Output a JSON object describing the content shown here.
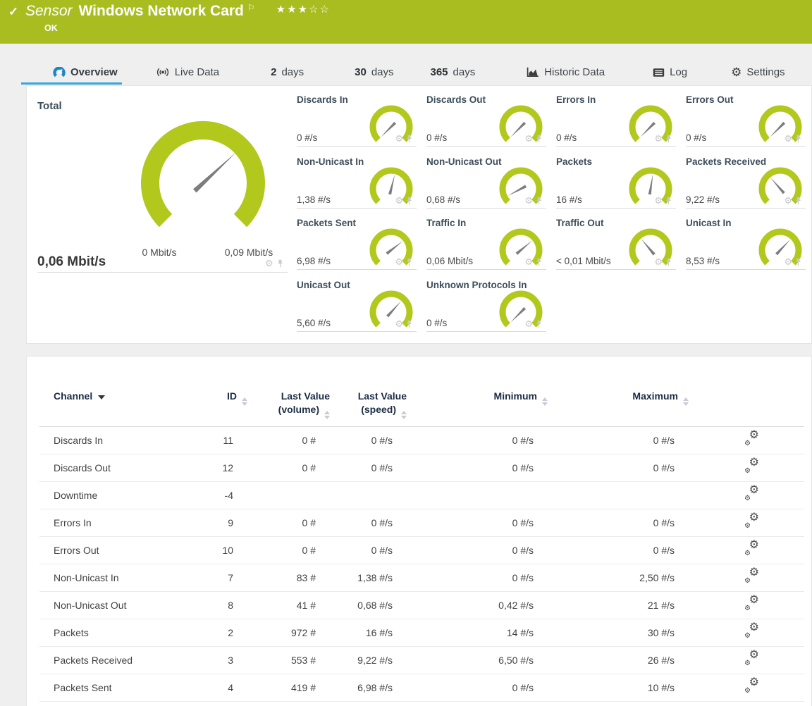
{
  "header": {
    "kind_label": "Sensor",
    "title": "Windows Network Card",
    "status_text": "OK",
    "rating_filled": 3,
    "rating_total": 5,
    "status_icon": "check-icon",
    "flag_icon": "flag-icon",
    "color": "#a9bd20"
  },
  "tabs": [
    {
      "label": "Overview",
      "icon": "gauge-icon",
      "active": true
    },
    {
      "label": "Live Data",
      "icon": "broadcast-icon"
    },
    {
      "prefix": "2",
      "label": "days"
    },
    {
      "prefix": "30",
      "label": "days"
    },
    {
      "prefix": "365",
      "label": "days"
    },
    {
      "label": "Historic Data",
      "icon": "chart-icon"
    },
    {
      "label": "Log",
      "icon": "log-icon"
    },
    {
      "label": "Settings",
      "icon": "gear-icon"
    }
  ],
  "gauge_colors": {
    "arc": "#b2c81c",
    "needle": "#7d7d7d"
  },
  "tile_icons": [
    "gear-icon",
    "pin-icon"
  ],
  "chart_data": [
    {
      "type": "gauge",
      "name": "Total",
      "value_label": "0,06 Mbit/s",
      "min_label": "0 Mbit/s",
      "max_label": "0,09 Mbit/s",
      "value": 0.06,
      "min": 0,
      "max": 0.09,
      "needle_deg": 43,
      "size": "large"
    },
    {
      "type": "gauge",
      "name": "Discards In",
      "value_label": "0 #/s",
      "value": 0,
      "needle_deg": 225
    },
    {
      "type": "gauge",
      "name": "Discards Out",
      "value_label": "0 #/s",
      "value": 0,
      "needle_deg": 225
    },
    {
      "type": "gauge",
      "name": "Errors In",
      "value_label": "0 #/s",
      "value": 0,
      "needle_deg": 225
    },
    {
      "type": "gauge",
      "name": "Errors Out",
      "value_label": "0 #/s",
      "value": 0,
      "needle_deg": 225
    },
    {
      "type": "gauge",
      "name": "Non-Unicast In",
      "value_label": "1,38 #/s",
      "value": 1.38,
      "needle_deg": 76
    },
    {
      "type": "gauge",
      "name": "Non-Unicast Out",
      "value_label": "0,68 #/s",
      "value": 0.68,
      "needle_deg": 208
    },
    {
      "type": "gauge",
      "name": "Packets",
      "value_label": "16 #/s",
      "value": 16,
      "needle_deg": 81
    },
    {
      "type": "gauge",
      "name": "Packets Received",
      "value_label": "9,22 #/s",
      "value": 9.22,
      "needle_deg": 131
    },
    {
      "type": "gauge",
      "name": "Packets Sent",
      "value_label": "6,98 #/s",
      "value": 6.98,
      "needle_deg": 38
    },
    {
      "type": "gauge",
      "name": "Traffic In",
      "value_label": "0,06 Mbit/s",
      "value": 0.06,
      "needle_deg": 40
    },
    {
      "type": "gauge",
      "name": "Traffic Out",
      "value_label": "< 0,01 Mbit/s",
      "value": 0.01,
      "needle_deg": 130
    },
    {
      "type": "gauge",
      "name": "Unicast In",
      "value_label": "8,53 #/s",
      "value": 8.53,
      "needle_deg": 47
    },
    {
      "type": "gauge",
      "name": "Unicast Out",
      "value_label": "5,60 #/s",
      "value": 5.6,
      "needle_deg": 48
    },
    {
      "type": "gauge",
      "name": "Unknown Protocols In",
      "value_label": "0 #/s",
      "value": 0,
      "needle_deg": 225
    }
  ],
  "table": {
    "columns": [
      {
        "label": "Channel",
        "sort": "active-desc"
      },
      {
        "label": "ID",
        "sort": "both"
      },
      {
        "label": "Last Value",
        "sub": "(volume)",
        "sort": "both"
      },
      {
        "label": "Last Value",
        "sub": "(speed)",
        "sort": "both"
      },
      {
        "label": "Minimum",
        "sort": "both"
      },
      {
        "label": "Maximum",
        "sort": "both"
      },
      {
        "label": "",
        "sort": "none"
      }
    ],
    "row_action_icon": "channel-settings-icon",
    "rows": [
      {
        "channel": "Discards In",
        "id": "11",
        "volume": "0 #",
        "speed": "0 #/s",
        "min": "0 #/s",
        "max": "0 #/s"
      },
      {
        "channel": "Discards Out",
        "id": "12",
        "volume": "0 #",
        "speed": "0 #/s",
        "min": "0 #/s",
        "max": "0 #/s"
      },
      {
        "channel": "Downtime",
        "id": "-4",
        "volume": "",
        "speed": "",
        "min": "",
        "max": ""
      },
      {
        "channel": "Errors In",
        "id": "9",
        "volume": "0 #",
        "speed": "0 #/s",
        "min": "0 #/s",
        "max": "0 #/s"
      },
      {
        "channel": "Errors Out",
        "id": "10",
        "volume": "0 #",
        "speed": "0 #/s",
        "min": "0 #/s",
        "max": "0 #/s"
      },
      {
        "channel": "Non-Unicast In",
        "id": "7",
        "volume": "83 #",
        "speed": "1,38 #/s",
        "min": "0 #/s",
        "max": "2,50 #/s"
      },
      {
        "channel": "Non-Unicast Out",
        "id": "8",
        "volume": "41 #",
        "speed": "0,68 #/s",
        "min": "0,42 #/s",
        "max": "21 #/s"
      },
      {
        "channel": "Packets",
        "id": "2",
        "volume": "972 #",
        "speed": "16 #/s",
        "min": "14 #/s",
        "max": "30 #/s"
      },
      {
        "channel": "Packets Received",
        "id": "3",
        "volume": "553 #",
        "speed": "9,22 #/s",
        "min": "6,50 #/s",
        "max": "26 #/s"
      },
      {
        "channel": "Packets Sent",
        "id": "4",
        "volume": "419 #",
        "speed": "6,98 #/s",
        "min": "0 #/s",
        "max": "10 #/s"
      }
    ]
  }
}
